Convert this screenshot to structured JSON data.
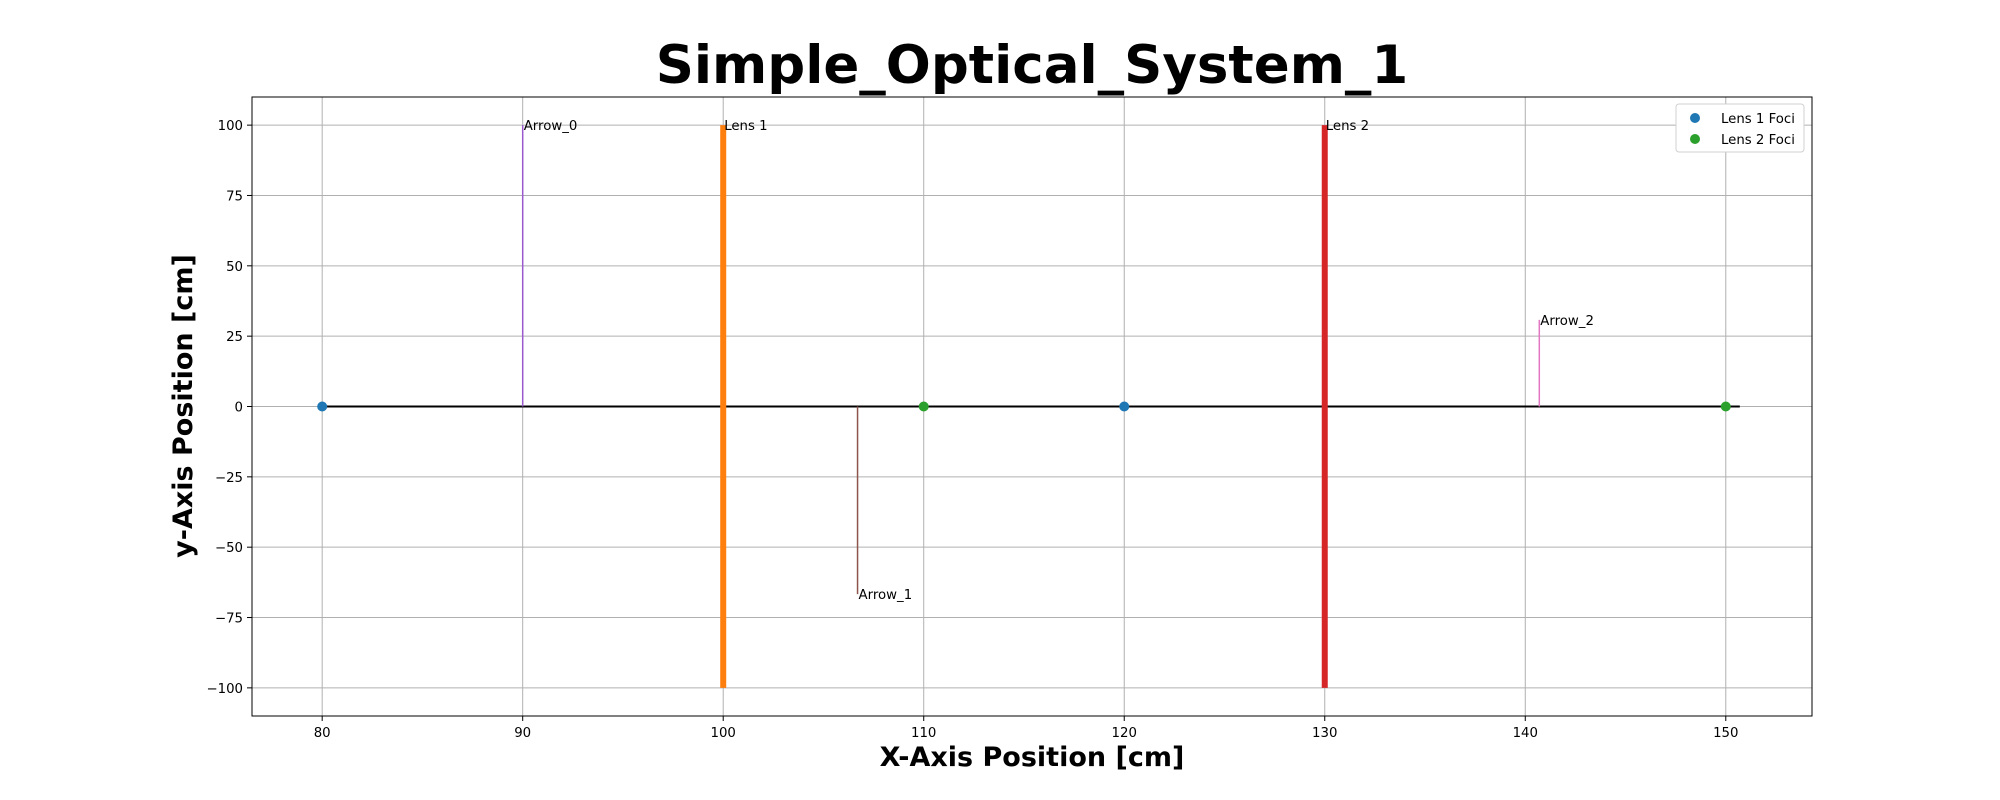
{
  "chart_data": {
    "type": "line",
    "title": "Simple_Optical_System_1",
    "xlabel": "X-Axis Position [cm]",
    "ylabel": "y-Axis Position [cm]",
    "xlim": [
      76.5,
      154.3
    ],
    "ylim": [
      -110,
      110
    ],
    "x_ticks": [
      80,
      90,
      100,
      110,
      120,
      130,
      140,
      150
    ],
    "y_ticks": [
      100,
      75,
      50,
      25,
      0,
      -25,
      -50,
      -75,
      -100
    ],
    "y_tick_labels": [
      "100",
      "75",
      "50",
      "25",
      "0",
      "−25",
      "−50",
      "−75",
      "−100"
    ],
    "grid": true,
    "legend_position": "top-right",
    "optical_axis": {
      "x": [
        80,
        150.7
      ],
      "y": [
        0,
        0
      ],
      "color": "#000000"
    },
    "elements": [
      {
        "label": "Arrow_0",
        "x": 90,
        "y_start": 0,
        "y_end": 100,
        "color": "#9b59d0",
        "kind": "arrow"
      },
      {
        "label": "Lens 1",
        "x": 100,
        "y_start": -100,
        "y_end": 100,
        "color": "#ff7f0e",
        "kind": "lens"
      },
      {
        "label": "Arrow_1",
        "x": 106.7,
        "y_start": 0,
        "y_end": -66.7,
        "color": "#8c564b",
        "kind": "arrow"
      },
      {
        "label": "Lens 2",
        "x": 130,
        "y_start": -100,
        "y_end": 100,
        "color": "#d62728",
        "kind": "lens"
      },
      {
        "label": "Arrow_2",
        "x": 140.7,
        "y_start": 0,
        "y_end": 30.8,
        "color": "#e377c2",
        "kind": "arrow"
      }
    ],
    "series": [
      {
        "name": "Lens 1 Foci",
        "x": [
          80,
          120
        ],
        "y": [
          0,
          0
        ],
        "color": "#1f77b4"
      },
      {
        "name": "Lens 2 Foci",
        "x": [
          110,
          150
        ],
        "y": [
          0,
          0
        ],
        "color": "#2ca02c"
      }
    ]
  }
}
